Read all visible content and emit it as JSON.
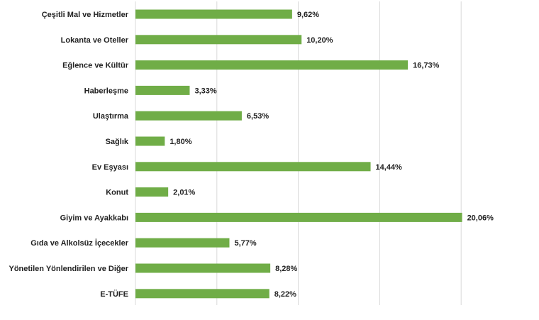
{
  "chart_data": {
    "type": "bar",
    "orientation": "horizontal",
    "title": "",
    "xlabel": "",
    "ylabel": "",
    "categories": [
      "Çeşitli Mal ve Hizmetler",
      "Lokanta ve Oteller",
      "Eğlence ve Kültür",
      "Haberleşme",
      "Ulaştırma",
      "Sağlık",
      "Ev Eşyası",
      "Konut",
      "Giyim ve Ayakkabı",
      "Gıda ve Alkolsüz İçecekler",
      "Yönetilen Yönlendirilen ve Diğer",
      "E-TÜFE"
    ],
    "values": [
      9.62,
      10.2,
      16.73,
      3.33,
      6.53,
      1.8,
      14.44,
      2.01,
      20.06,
      5.77,
      8.28,
      8.22
    ],
    "value_labels": [
      "9,62%",
      "10,20%",
      "16,73%",
      "3,33%",
      "6,53%",
      "1,80%",
      "14,44%",
      "2,01%",
      "20,06%",
      "5,77%",
      "8,28%",
      "8,22%"
    ],
    "xlim": [
      0,
      25
    ],
    "grid": "vertical",
    "legend": "none",
    "bar_color": "#70ad47"
  }
}
